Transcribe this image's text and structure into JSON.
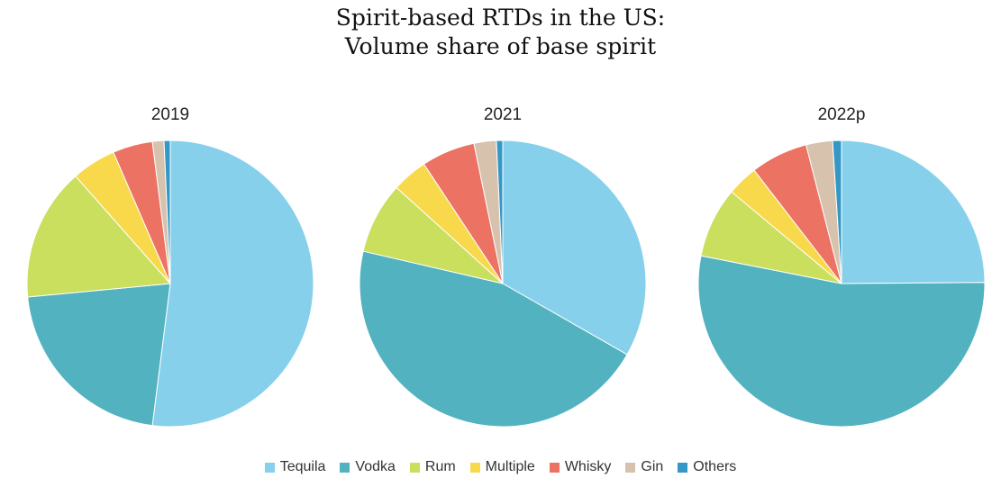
{
  "figure": {
    "title_line1": "Spirit-based RTDs in the US:",
    "title_line2": "Volume share of base spirit"
  },
  "legend": [
    {
      "label": "Tequila",
      "color": "#86d0eb"
    },
    {
      "label": "Vodka",
      "color": "#52b2c0"
    },
    {
      "label": "Rum",
      "color": "#c9df5d"
    },
    {
      "label": "Multiple",
      "color": "#f9d94c"
    },
    {
      "label": "Whisky",
      "color": "#ec7264"
    },
    {
      "label": "Gin",
      "color": "#d6c2ad"
    },
    {
      "label": "Others",
      "color": "#3497c5"
    }
  ],
  "chart_data": [
    {
      "type": "pie",
      "title": "2019",
      "labels": [
        "Tequila",
        "Vodka",
        "Rum",
        "Multiple",
        "Whisky",
        "Gin",
        "Others"
      ],
      "values": [
        52.0,
        21.5,
        15.0,
        5.0,
        4.5,
        1.3,
        0.7
      ],
      "unit": "%"
    },
    {
      "type": "pie",
      "title": "2021",
      "labels": [
        "Tequila",
        "Vodka",
        "Rum",
        "Multiple",
        "Whisky",
        "Gin",
        "Others"
      ],
      "values": [
        33.0,
        45.0,
        8.0,
        4.0,
        6.0,
        2.5,
        0.7
      ],
      "unit": "%"
    },
    {
      "type": "pie",
      "title": "2022p",
      "labels": [
        "Tequila",
        "Vodka",
        "Rum",
        "Multiple",
        "Whisky",
        "Gin",
        "Others"
      ],
      "values": [
        25.0,
        53.5,
        8.0,
        3.5,
        6.5,
        3.0,
        1.0
      ],
      "unit": "%"
    }
  ]
}
